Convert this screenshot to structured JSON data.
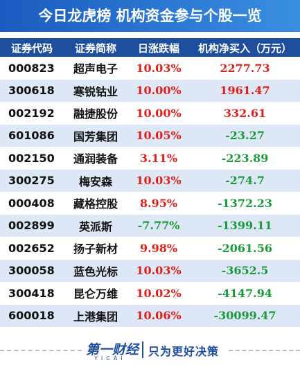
{
  "header": {
    "title": "今日龙虎榜  机构资金参与个股一览"
  },
  "table": {
    "columns": [
      "证券代码",
      "证券简称",
      "日涨跌幅",
      "机构净买入（万元）"
    ],
    "rows": [
      [
        "000823",
        "超声电子",
        "10.03%",
        "2277.73"
      ],
      [
        "300618",
        "寒锐钴业",
        "10.00%",
        "1961.47"
      ],
      [
        "002192",
        "融捷股份",
        "10.00%",
        "332.61"
      ],
      [
        "601086",
        "国芳集团",
        "10.05%",
        "-23.27"
      ],
      [
        "002150",
        "通润装备",
        "3.11%",
        "-223.89"
      ],
      [
        "300275",
        "梅安森",
        "10.03%",
        "-274.7"
      ],
      [
        "000408",
        "藏格控股",
        "8.95%",
        "-1372.23"
      ],
      [
        "002899",
        "英派斯",
        "-7.77%",
        "-1399.11"
      ],
      [
        "002652",
        "扬子新材",
        "9.98%",
        "-2061.56"
      ],
      [
        "300058",
        "蓝色光标",
        "10.03%",
        "-3652.5"
      ],
      [
        "300418",
        "昆仑万维",
        "10.02%",
        "-4147.94"
      ],
      [
        "600018",
        "上港集团",
        "10.06%",
        "-30099.47"
      ]
    ]
  },
  "footer": {
    "logo": "第一财经",
    "logo_sub": "YICAI",
    "slogan": "只为更好决策"
  }
}
